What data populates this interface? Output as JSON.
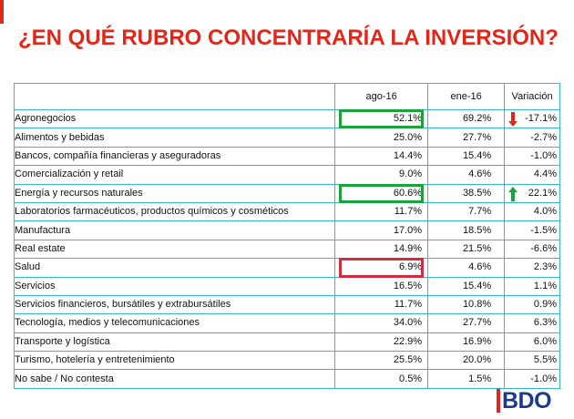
{
  "title": "¿EN QUÉ RUBRO CONCENTRARÍA LA INVERSIÓN?",
  "columns": {
    "label": "",
    "ago": "ago-16",
    "ene": "ene-16",
    "var": "Variación"
  },
  "rows": [
    {
      "label": "Agronegocios",
      "ago": "52.1%",
      "ene": "69.2%",
      "var": "-17.1%",
      "ago_highlight": "green",
      "arrow": "down"
    },
    {
      "label": "Alimentos y bebidas",
      "ago": "25.0%",
      "ene": "27.7%",
      "var": "-2.7%"
    },
    {
      "label": "Bancos, compañía financieras y aseguradoras",
      "ago": "14.4%",
      "ene": "15.4%",
      "var": "-1.0%"
    },
    {
      "label": "Comercialización y retail",
      "ago": "9.0%",
      "ene": "4.6%",
      "var": "4.4%"
    },
    {
      "label": "Energía y recursos naturales",
      "ago": "60.6%",
      "ene": "38.5%",
      "var": "22.1%",
      "ago_highlight": "green",
      "arrow": "up"
    },
    {
      "label": "Laboratorios farmacéuticos, productos químicos y cosméticos",
      "ago": "11.7%",
      "ene": "7.7%",
      "var": "4.0%"
    },
    {
      "label": "Manufactura",
      "ago": "17.0%",
      "ene": "18.5%",
      "var": "-1.5%"
    },
    {
      "label": "Real estate",
      "ago": "14.9%",
      "ene": "21.5%",
      "var": "-6.6%"
    },
    {
      "label": "Salud",
      "ago": "6.9%",
      "ene": "4.6%",
      "var": "2.3%",
      "ago_highlight": "red"
    },
    {
      "label": "Servicios",
      "ago": "16.5%",
      "ene": "15.4%",
      "var": "1.1%"
    },
    {
      "label": "Servicios financieros, bursátiles y extrabursátiles",
      "ago": "11.7%",
      "ene": "10.8%",
      "var": "0.9%"
    },
    {
      "label": "Tecnología, medios y telecomunicaciones",
      "ago": "34.0%",
      "ene": "27.7%",
      "var": "6.3%"
    },
    {
      "label": "Transporte y logística",
      "ago": "22.9%",
      "ene": "16.9%",
      "var": "6.0%"
    },
    {
      "label": "Turismo, hotelería y entretenimiento",
      "ago": "25.5%",
      "ene": "20.0%",
      "var": "5.5%"
    },
    {
      "label": "No sabe / No contesta",
      "ago": "0.5%",
      "ene": "1.5%",
      "var": "-1.0%"
    }
  ],
  "colors": {
    "brand_red": "#e0271a",
    "grid_blue": "#37b6d3",
    "highlight_green": "#1aa33a",
    "highlight_red": "#d62a3e",
    "arrow_up": "#1aa33a",
    "arrow_down": "#e0271a",
    "logo_blue": "#1b3a8c"
  },
  "logo": {
    "text": "BDO"
  }
}
